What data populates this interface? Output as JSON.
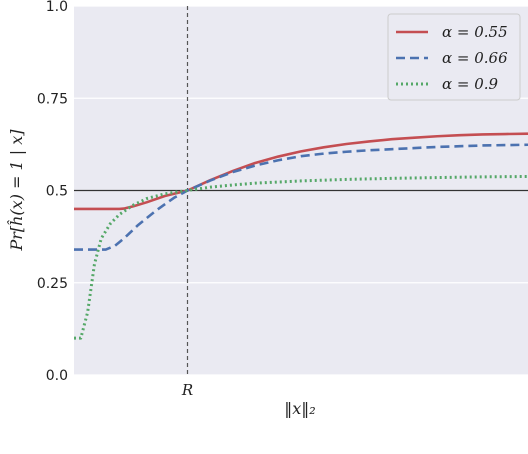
{
  "chart_data": {
    "type": "line",
    "title": "",
    "xlabel": "‖x‖₂",
    "ylabel": "Pr[ĥ(x) = 1 | x]",
    "xlim": [
      0,
      10
    ],
    "ylim": [
      0,
      1
    ],
    "yticks": [
      {
        "value": 0.0,
        "label": "0.0"
      },
      {
        "value": 0.25,
        "label": "0.25"
      },
      {
        "value": 0.5,
        "label": "0.5"
      },
      {
        "value": 0.75,
        "label": "0.75"
      },
      {
        "value": 1.0,
        "label": "1.0"
      }
    ],
    "xticks": [
      {
        "value": 2.5,
        "label": "R"
      }
    ],
    "grid": true,
    "background": "#eaeaf2",
    "reference_lines": [
      {
        "orientation": "horizontal",
        "value": 0.5,
        "style": "solid",
        "color": "#333333"
      },
      {
        "orientation": "vertical",
        "value": 2.5,
        "style": "dashed",
        "color": "#555555",
        "label": "R"
      }
    ],
    "legend": {
      "position": "top-right"
    },
    "series": [
      {
        "name": "α = 0.55",
        "color": "#c44e52",
        "style": "solid",
        "x": [
          0,
          0.5,
          1.0,
          1.1,
          1.3,
          1.6,
          2.0,
          2.5,
          3.0,
          3.5,
          4.0,
          4.5,
          5.0,
          5.5,
          6.0,
          6.5,
          7.0,
          7.5,
          8.0,
          8.5,
          9.0,
          9.5,
          10.0
        ],
        "values": [
          0.45,
          0.45,
          0.45,
          0.451,
          0.457,
          0.468,
          0.485,
          0.5,
          0.528,
          0.553,
          0.575,
          0.592,
          0.606,
          0.617,
          0.626,
          0.633,
          0.639,
          0.643,
          0.647,
          0.65,
          0.652,
          0.653,
          0.654
        ]
      },
      {
        "name": "α = 0.66",
        "color": "#4c72b0",
        "style": "dashed",
        "x": [
          0,
          0.5,
          0.7,
          0.9,
          1.1,
          1.4,
          1.8,
          2.2,
          2.5,
          3.0,
          3.5,
          4.0,
          4.5,
          5.0,
          5.5,
          6.0,
          6.5,
          7.0,
          7.5,
          8.0,
          8.5,
          9.0,
          9.5,
          10.0
        ],
        "values": [
          0.34,
          0.34,
          0.34,
          0.35,
          0.37,
          0.405,
          0.445,
          0.48,
          0.5,
          0.527,
          0.55,
          0.568,
          0.582,
          0.593,
          0.6,
          0.605,
          0.609,
          0.612,
          0.615,
          0.618,
          0.62,
          0.622,
          0.623,
          0.624
        ]
      },
      {
        "name": "α = 0.9",
        "color": "#55a868",
        "style": "dotted",
        "x": [
          0,
          0.15,
          0.3,
          0.45,
          0.6,
          0.8,
          1.0,
          1.3,
          1.6,
          2.0,
          2.5,
          3.0,
          3.5,
          4.0,
          5.0,
          6.0,
          7.0,
          8.0,
          9.0,
          10.0
        ],
        "values": [
          0.1,
          0.1,
          0.17,
          0.3,
          0.37,
          0.41,
          0.435,
          0.46,
          0.478,
          0.491,
          0.5,
          0.509,
          0.515,
          0.52,
          0.526,
          0.53,
          0.533,
          0.535,
          0.537,
          0.538
        ]
      }
    ]
  }
}
